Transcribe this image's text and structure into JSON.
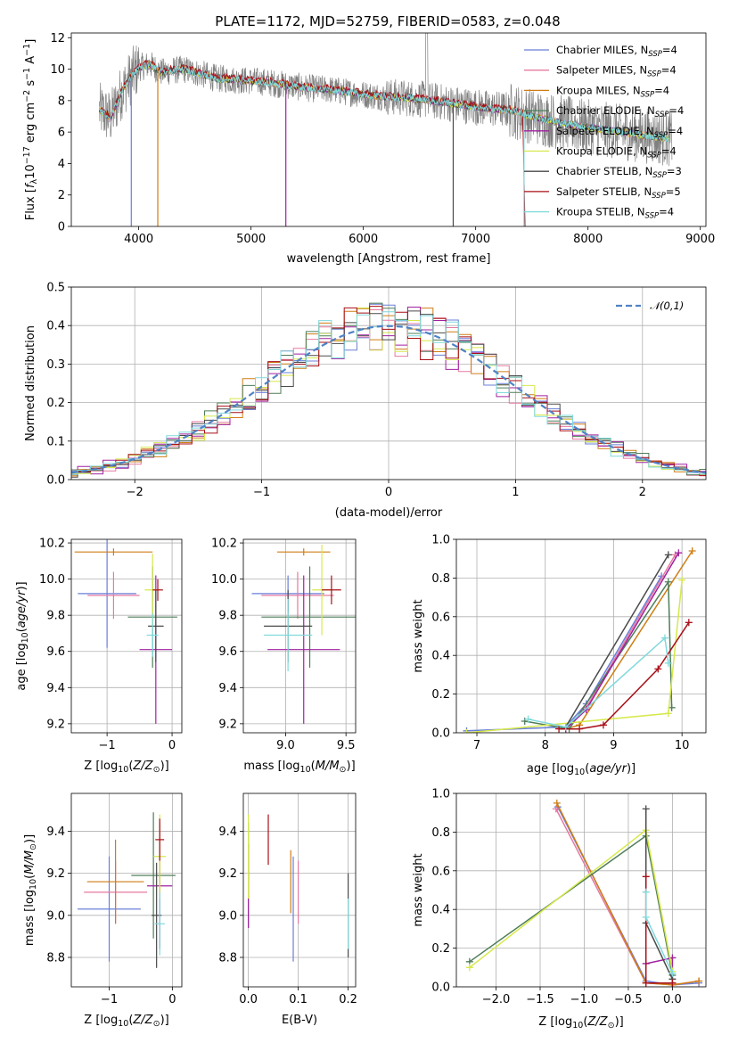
{
  "figure": {
    "title": "PLATE=1172, MJD=52759, FIBERID=0583, z=0.048",
    "models": [
      {
        "name": "Chabrier MILES, N_SSP=4",
        "base": "Chabrier MILES, N",
        "sub": "SSP",
        "tail": "=4",
        "color": "#6a7fd8"
      },
      {
        "name": "Salpeter MILES, N_SSP=4",
        "base": "Salpeter MILES, N",
        "sub": "SSP",
        "tail": "=4",
        "color": "#e57aa0"
      },
      {
        "name": "Kroupa MILES, N_SSP=4",
        "base": "Kroupa MILES, N",
        "sub": "SSP",
        "tail": "=4",
        "color": "#cf7d14"
      },
      {
        "name": "Chabrier ELODIE, N_SSP=4",
        "base": "Chabrier ELODIE, N",
        "sub": "SSP",
        "tail": "=4",
        "color": "#4e7d58"
      },
      {
        "name": "Salpeter ELODIE, N_SSP=4",
        "base": "Salpeter ELODIE, N",
        "sub": "SSP",
        "tail": "=4",
        "color": "#a021a0"
      },
      {
        "name": "Kroupa ELODIE, N_SSP=4",
        "base": "Kroupa ELODIE, N",
        "sub": "SSP",
        "tail": "=4",
        "color": "#d6e84a"
      },
      {
        "name": "Chabrier STELIB, N_SSP=3",
        "base": "Chabrier STELIB, N",
        "sub": "SSP",
        "tail": "=3",
        "color": "#4a4a4a"
      },
      {
        "name": "Salpeter STELIB, N_SSP=5",
        "base": "Salpeter STELIB, N",
        "sub": "SSP",
        "tail": "=5",
        "color": "#a80f17"
      },
      {
        "name": "Kroupa STELIB, N_SSP=4",
        "base": "Kroupa STELIB, N",
        "sub": "SSP",
        "tail": "=4",
        "color": "#7fd9dc"
      }
    ]
  },
  "chart_data": [
    {
      "type": "line",
      "title": "PLATE=1172, MJD=52759, FIBERID=0583, z=0.048",
      "xlabel": "wavelength [Angstrom, rest frame]",
      "ylabel": "Flux [f_λ 10^-17 erg cm^-2 s^-1 A^-1]",
      "xlim": [
        3400,
        9050
      ],
      "ylim": [
        0,
        12.3
      ],
      "xticks": [
        4000,
        5000,
        6000,
        7000,
        8000,
        9000
      ],
      "yticks": [
        0,
        2,
        4,
        6,
        8,
        10,
        12
      ],
      "data_color": "#808080",
      "spectrum_envelope": {
        "x": [
          3650,
          3750,
          3850,
          3950,
          4000,
          4100,
          4200,
          4300,
          4400,
          4500,
          4700,
          4900,
          5100,
          5300,
          5500,
          5700,
          5900,
          6100,
          6300,
          6500,
          6700,
          6900,
          7100,
          7300,
          7500,
          7700,
          7900,
          8100,
          8300,
          8500,
          8700
        ],
        "y": [
          7.4,
          6.9,
          8.6,
          9.7,
          10.1,
          10.3,
          9.8,
          9.9,
          10.0,
          9.8,
          9.4,
          9.3,
          9.2,
          9.0,
          8.8,
          8.7,
          8.5,
          8.3,
          8.2,
          8.1,
          7.9,
          7.7,
          7.5,
          7.4,
          7.0,
          6.7,
          6.4,
          6.2,
          6.0,
          5.8,
          5.6
        ]
      },
      "absorption_features": [
        {
          "x": 3934,
          "y": 0.0
        },
        {
          "x": 4170,
          "y": 0.0
        },
        {
          "x": 5310,
          "y": 0.0
        },
        {
          "x": 6800,
          "y": 0.0
        },
        {
          "x": 7430,
          "y": 0.0
        }
      ],
      "legend": "right",
      "grid": false
    },
    {
      "type": "bar",
      "xlabel": "(data-model)/error",
      "ylabel": "Normed distribution",
      "xlim": [
        -2.5,
        2.5
      ],
      "ylim": [
        0,
        0.5
      ],
      "xticks": [
        -2,
        -1,
        0,
        1,
        2
      ],
      "yticks": [
        0.0,
        0.1,
        0.2,
        0.3,
        0.4,
        0.5
      ],
      "reference": {
        "label": "𝒩(0,1)",
        "mu": 0,
        "sigma": 1,
        "color": "#4f83c6"
      },
      "bin_width": 0.1,
      "legend": "top-right",
      "grid": true
    },
    {
      "type": "scatter",
      "xlabel": "Z [log10(Z/Z⊙)]",
      "ylabel": "age  [log10(age/yr)]",
      "xlim": [
        -1.55,
        0.15
      ],
      "ylim": [
        9.15,
        10.22
      ],
      "xticks": [
        -1,
        0
      ],
      "yticks": [
        9.2,
        9.4,
        9.6,
        9.8,
        10.0,
        10.2
      ],
      "points": [
        {
          "x": -1.0,
          "y": 9.92,
          "xerr": 0.45,
          "yerr": 0.3
        },
        {
          "x": -0.9,
          "y": 9.91,
          "xerr": 0.4,
          "yerr": 0.13
        },
        {
          "x": -0.9,
          "y": 10.15,
          "xerr": 0.6,
          "yerr": 0.02
        },
        {
          "x": -0.3,
          "y": 9.79,
          "xerr": 0.38,
          "yerr": 0.28
        },
        {
          "x": -0.25,
          "y": 9.61,
          "xerr": 0.25,
          "yerr": 0.41
        },
        {
          "x": -0.3,
          "y": 9.94,
          "xerr": 0.12,
          "yerr": 0.2
        },
        {
          "x": -0.25,
          "y": 9.74,
          "xerr": 0.12,
          "yerr": 0.2
        },
        {
          "x": -0.22,
          "y": 9.94,
          "xerr": 0.08,
          "yerr": 0.06
        },
        {
          "x": -0.3,
          "y": 9.69,
          "xerr": 0.09,
          "yerr": 0.12
        }
      ]
    },
    {
      "type": "scatter",
      "xlabel": "mass [log10(M/M⊙)]",
      "xlim": [
        8.65,
        9.58
      ],
      "ylim": [
        9.15,
        10.22
      ],
      "xticks": [
        9.0,
        9.5
      ],
      "yticks": [
        9.2,
        9.4,
        9.6,
        9.8,
        10.0,
        10.2
      ],
      "points": [
        {
          "x": 9.02,
          "y": 9.92,
          "xerr": 0.3,
          "yerr": 0.1
        },
        {
          "x": 9.1,
          "y": 9.91,
          "xerr": 0.3,
          "yerr": 0.13
        },
        {
          "x": 9.15,
          "y": 10.15,
          "xerr": 0.22,
          "yerr": 0.02
        },
        {
          "x": 9.2,
          "y": 9.79,
          "xerr": 0.4,
          "yerr": 0.28
        },
        {
          "x": 9.15,
          "y": 9.61,
          "xerr": 0.3,
          "yerr": 0.41
        },
        {
          "x": 9.3,
          "y": 9.94,
          "xerr": 0.08,
          "yerr": 0.25
        },
        {
          "x": 9.02,
          "y": 9.74,
          "xerr": 0.2,
          "yerr": 0.2
        },
        {
          "x": 9.38,
          "y": 9.94,
          "xerr": 0.08,
          "yerr": 0.08
        },
        {
          "x": 9.02,
          "y": 9.69,
          "xerr": 0.2,
          "yerr": 0.2
        }
      ]
    },
    {
      "type": "line",
      "xlabel": "age  [log10(age/yr)]",
      "ylabel": "mass weight",
      "xlim": [
        6.7,
        10.35
      ],
      "ylim": [
        0,
        1
      ],
      "xticks": [
        7,
        8,
        9,
        10
      ],
      "yticks": [
        0.0,
        0.2,
        0.4,
        0.6,
        0.8,
        1.0
      ],
      "series": [
        {
          "x": [
            6.85,
            8.3,
            8.6,
            9.7
          ],
          "y": [
            0.01,
            0.03,
            0.15,
            0.81
          ]
        },
        {
          "x": [
            8.3,
            8.6,
            9.9
          ],
          "y": [
            0.02,
            0.13,
            0.92
          ]
        },
        {
          "x": [
            8.3,
            8.5,
            10.15
          ],
          "y": [
            0.02,
            0.04,
            0.94
          ]
        },
        {
          "x": [
            7.7,
            8.35,
            9.8,
            9.85
          ],
          "y": [
            0.06,
            0.02,
            0.78,
            0.13
          ]
        },
        {
          "x": [
            8.3,
            8.6,
            9.95
          ],
          "y": [
            0.02,
            0.12,
            0.93
          ]
        },
        {
          "x": [
            6.85,
            9.8,
            10.0
          ],
          "y": [
            0.0,
            0.1,
            0.79
          ]
        },
        {
          "x": [
            8.3,
            9.8
          ],
          "y": [
            0.03,
            0.92
          ]
        },
        {
          "x": [
            8.2,
            8.5,
            8.85,
            9.65,
            10.1
          ],
          "y": [
            0.02,
            0.02,
            0.04,
            0.33,
            0.57
          ]
        },
        {
          "x": [
            7.75,
            8.3,
            9.75,
            9.8
          ],
          "y": [
            0.07,
            0.03,
            0.49,
            0.36
          ]
        }
      ]
    },
    {
      "type": "scatter",
      "xlabel": "Z [log10(Z/Z⊙)]",
      "ylabel": "mass [log10(M/M⊙)]",
      "xlim": [
        -1.6,
        0.15
      ],
      "ylim": [
        8.66,
        9.58
      ],
      "xticks": [
        -1,
        0
      ],
      "yticks": [
        8.8,
        9.0,
        9.2,
        9.4
      ],
      "points": [
        {
          "x": -1.0,
          "y": 9.03,
          "xerr": 0.5,
          "yerr": 0.25
        },
        {
          "x": -0.9,
          "y": 9.11,
          "xerr": 0.5,
          "yerr": 0.15
        },
        {
          "x": -0.9,
          "y": 9.16,
          "xerr": 0.45,
          "yerr": 0.2
        },
        {
          "x": -0.3,
          "y": 9.19,
          "xerr": 0.35,
          "yerr": 0.3
        },
        {
          "x": -0.2,
          "y": 9.14,
          "xerr": 0.2,
          "yerr": 0.3
        },
        {
          "x": -0.2,
          "y": 9.28,
          "xerr": 0.1,
          "yerr": 0.2
        },
        {
          "x": -0.25,
          "y": 9.0,
          "xerr": 0.08,
          "yerr": 0.25
        },
        {
          "x": -0.2,
          "y": 9.36,
          "xerr": 0.07,
          "yerr": 0.1
        },
        {
          "x": -0.2,
          "y": 8.96,
          "xerr": 0.08,
          "yerr": 0.15
        }
      ]
    },
    {
      "type": "scatter",
      "xlabel": "E(B-V)",
      "xlim": [
        -0.01,
        0.215
      ],
      "ylim": [
        8.66,
        9.58
      ],
      "xticks": [
        0.0,
        0.1,
        0.2
      ],
      "yticks": [
        8.8,
        9.0,
        9.2,
        9.4
      ],
      "points": [
        {
          "x": 0.09,
          "y": 9.03,
          "yerr": 0.25
        },
        {
          "x": 0.1,
          "y": 9.11,
          "yerr": 0.15
        },
        {
          "x": 0.085,
          "y": 9.16,
          "yerr": 0.15
        },
        {
          "x": 0.0,
          "y": 9.19,
          "yerr": 0.25
        },
        {
          "x": 0.0,
          "y": 9.14,
          "yerr": 0.2
        },
        {
          "x": 0.0,
          "y": 9.28,
          "yerr": 0.2
        },
        {
          "x": 0.2,
          "y": 9.0,
          "yerr": 0.2
        },
        {
          "x": 0.04,
          "y": 9.36,
          "yerr": 0.12
        },
        {
          "x": 0.2,
          "y": 8.96,
          "yerr": 0.12
        }
      ]
    },
    {
      "type": "line",
      "xlabel": "Z [log10(Z/Z⊙)]",
      "ylabel": "mass weight",
      "xlim": [
        -2.45,
        0.38
      ],
      "ylim": [
        0,
        1
      ],
      "xticks": [
        -2.0,
        -1.5,
        -1.0,
        -0.5,
        0.0
      ],
      "yticks": [
        0.0,
        0.2,
        0.4,
        0.6,
        0.8,
        1.0
      ],
      "series": [
        {
          "x": [
            -1.3,
            -0.3,
            0.0,
            0.3
          ],
          "y": [
            0.93,
            0.03,
            0.01,
            0.02
          ]
        },
        {
          "x": [
            -1.32,
            -0.3,
            0.0,
            0.3
          ],
          "y": [
            0.92,
            0.02,
            0.01,
            0.03
          ]
        },
        {
          "x": [
            -1.31,
            -0.3,
            0.0,
            0.3
          ],
          "y": [
            0.95,
            0.02,
            0.01,
            0.03
          ]
        },
        {
          "x": [
            -2.3,
            -0.3,
            0.0
          ],
          "y": [
            0.13,
            0.78,
            0.06
          ]
        },
        {
          "x": [
            -0.3,
            0.0,
            0.0
          ],
          "y": [
            0.12,
            0.15,
            0.02
          ]
        },
        {
          "x": [
            -2.3,
            -0.3,
            0.0
          ],
          "y": [
            0.1,
            0.81,
            0.08
          ]
        },
        {
          "x": [
            -0.3,
            -0.3,
            0.0
          ],
          "y": [
            0.92,
            0.33,
            0.04
          ]
        },
        {
          "x": [
            -0.3,
            -0.3,
            0.0
          ],
          "y": [
            0.57,
            0.02,
            0.02
          ]
        },
        {
          "x": [
            -0.3,
            -0.3,
            0.0
          ],
          "y": [
            0.49,
            0.36,
            0.07
          ]
        }
      ]
    }
  ]
}
